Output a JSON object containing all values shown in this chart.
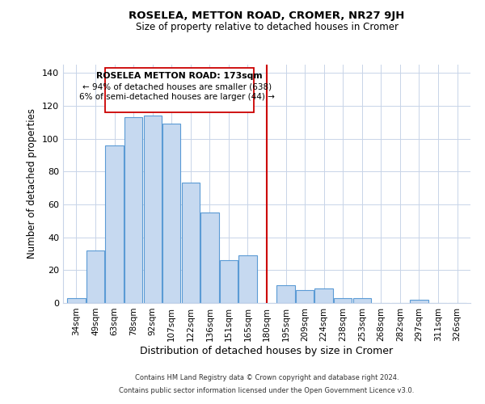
{
  "title": "ROSELEA, METTON ROAD, CROMER, NR27 9JH",
  "subtitle": "Size of property relative to detached houses in Cromer",
  "xlabel": "Distribution of detached houses by size in Cromer",
  "ylabel": "Number of detached properties",
  "bar_labels": [
    "34sqm",
    "49sqm",
    "63sqm",
    "78sqm",
    "92sqm",
    "107sqm",
    "122sqm",
    "136sqm",
    "151sqm",
    "165sqm",
    "180sqm",
    "195sqm",
    "209sqm",
    "224sqm",
    "238sqm",
    "253sqm",
    "268sqm",
    "282sqm",
    "297sqm",
    "311sqm",
    "326sqm"
  ],
  "bar_values": [
    3,
    32,
    96,
    113,
    114,
    109,
    73,
    55,
    26,
    29,
    0,
    11,
    8,
    9,
    3,
    3,
    0,
    0,
    2,
    0,
    0
  ],
  "bar_color": "#c6d9f0",
  "bar_edge_color": "#5b9bd5",
  "ylim": [
    0,
    145
  ],
  "yticks": [
    0,
    20,
    40,
    60,
    80,
    100,
    120,
    140
  ],
  "vline_x": 10.0,
  "vline_color": "#cc0000",
  "annotation_title": "ROSELEA METTON ROAD: 173sqm",
  "annotation_line1": "← 94% of detached houses are smaller (638)",
  "annotation_line2": "6% of semi-detached houses are larger (44) →",
  "annotation_box_color": "#ffffff",
  "annotation_box_edge": "#cc0000",
  "footer1": "Contains HM Land Registry data © Crown copyright and database right 2024.",
  "footer2": "Contains public sector information licensed under the Open Government Licence v3.0."
}
